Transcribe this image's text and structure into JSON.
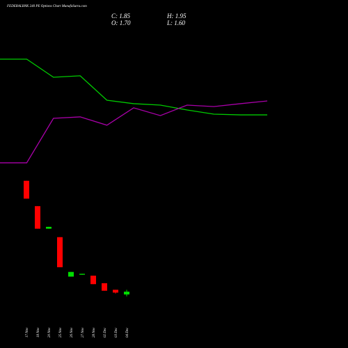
{
  "header": {
    "title": "FEDERALBNK 240 PE Options Chart MunafaSutra.com",
    "close": "C: 1.85",
    "high": "H: 1.95",
    "open": "O: 1.70",
    "low": "L: 1.60"
  },
  "chart_data": [
    {
      "type": "line",
      "ylim": [
        0,
        100
      ],
      "series": [
        {
          "color": "#00cc00",
          "values": [
            82.7,
            82.7,
            72.7,
            73.5,
            60,
            58.1,
            57.3,
            54.6,
            52.3,
            51.9,
            51.9
          ]
        },
        {
          "color": "#aa00aa",
          "values": [
            25.4,
            25.4,
            50,
            50.8,
            46.2,
            55.8,
            51.5,
            57.3,
            56.5,
            58.1,
            59.6
          ]
        }
      ]
    },
    {
      "type": "candlestick",
      "ylim": [
        0,
        17
      ],
      "categories": [
        "17 Nov",
        "18 Nov",
        "20 Nov",
        "25 Nov",
        "26 Nov",
        "27 Nov",
        "28 Nov",
        "02 Dec",
        "03 Dec",
        "04 Dec"
      ],
      "open": [
        7.75,
        6.4,
        5.2,
        4.75,
        2.65,
        2.75,
        2.7,
        2.3,
        1.95,
        1.7
      ],
      "high": [
        7.75,
        6.4,
        5.3,
        4.75,
        2.9,
        2.8,
        2.7,
        2.3,
        1.95,
        1.95
      ],
      "low": [
        6.8,
        5.2,
        5.2,
        3.15,
        2.65,
        2.75,
        2.25,
        1.9,
        1.75,
        1.6
      ],
      "close": [
        6.8,
        5.2,
        5.3,
        3.15,
        2.9,
        2.8,
        2.25,
        1.9,
        1.8,
        1.85
      ],
      "up_color": "#00dd00",
      "down_color": "#ff0000"
    }
  ]
}
